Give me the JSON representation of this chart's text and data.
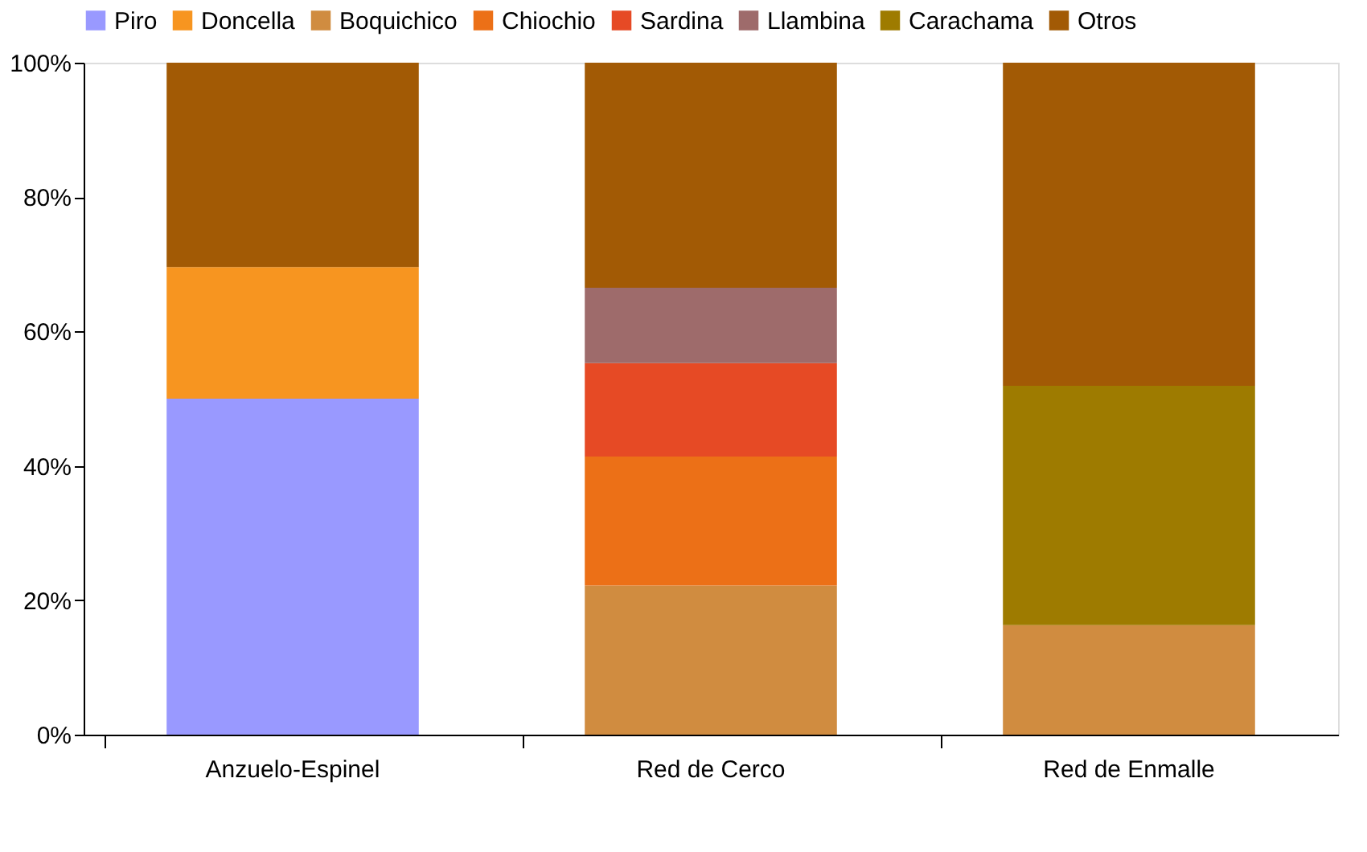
{
  "chart_data": {
    "type": "bar",
    "stacked": true,
    "categories": [
      "Anzuelo-Espinel",
      "Red de Cerco",
      "Red de Enmalle"
    ],
    "series": [
      {
        "name": "Piro",
        "color": "#9999ff",
        "values": [
          50.0,
          null,
          null
        ]
      },
      {
        "name": "Doncella",
        "color": "#f79520",
        "values": [
          19.6,
          null,
          null
        ]
      },
      {
        "name": "Boquichico",
        "color": "#d08c40",
        "values": [
          null,
          22.2,
          16.3
        ]
      },
      {
        "name": "Chiochio",
        "color": "#ec7017",
        "values": [
          null,
          19.2,
          null
        ]
      },
      {
        "name": "Sardina",
        "color": "#e64a25",
        "values": [
          null,
          13.9,
          null
        ]
      },
      {
        "name": "Llambina",
        "color": "#9e6b6b",
        "values": [
          null,
          11.2,
          null
        ]
      },
      {
        "name": "Carachama",
        "color": "#9e7b00",
        "values": [
          null,
          null,
          35.6
        ]
      },
      {
        "name": "Otros",
        "color": "#a25a05",
        "values": [
          30.4,
          33.5,
          48.1
        ]
      }
    ],
    "ylim": [
      0,
      100
    ],
    "yticks": [
      {
        "value": 0,
        "label": "0%"
      },
      {
        "value": 20,
        "label": "20%"
      },
      {
        "value": 40,
        "label": "40%"
      },
      {
        "value": 60,
        "label": "60%"
      },
      {
        "value": 80,
        "label": "80%"
      },
      {
        "value": 100,
        "label": "100%"
      }
    ],
    "legend": "top",
    "grid": false
  }
}
